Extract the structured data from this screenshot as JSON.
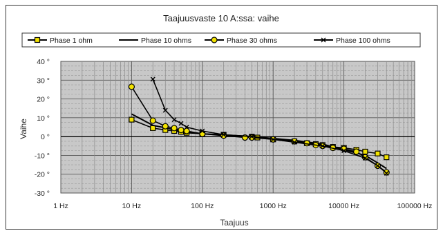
{
  "chart_data": {
    "type": "line",
    "title": "Taajuusvaste 10 A:ssa: vaihe",
    "xlabel": "Taajuus",
    "ylabel": "Vaihe",
    "x_scale": "log",
    "xlim": [
      1,
      100000
    ],
    "ylim": [
      -30,
      40
    ],
    "grid": true,
    "legend_position": "top",
    "x_ticks": [
      "1 Hz",
      "10 Hz",
      "100 Hz",
      "1000 Hz",
      "10000 Hz",
      "100000 Hz"
    ],
    "y_ticks": [
      "40 °",
      "30 °",
      "20 °",
      "10 °",
      "0 °",
      "-10 °",
      "-20 °",
      "-30 °"
    ],
    "colors": {
      "plot_bg": "#c8c8c8",
      "phase_1_fill": "#f2e200",
      "phase_30_fill": "#f2e200",
      "line": "#000000"
    },
    "series": [
      {
        "name": "Phase 1 ohm",
        "marker": "square",
        "x": [
          10,
          20,
          30,
          40,
          50,
          60,
          100,
          200,
          500,
          600,
          1000,
          2000,
          3000,
          4000,
          5000,
          7000,
          10000,
          15000,
          20000,
          30000,
          40000
        ],
        "y": [
          9,
          4.5,
          3.5,
          3,
          2.5,
          2,
          1.5,
          1,
          0,
          -0.5,
          -1.5,
          -2.5,
          -3.5,
          -4,
          -4.5,
          -5.5,
          -6,
          -7,
          -8,
          -9,
          -11
        ]
      },
      {
        "name": "Phase 10 ohms",
        "marker": "none",
        "x": [
          10,
          20,
          50,
          100,
          200,
          500,
          1000,
          2000,
          5000,
          10000,
          20000,
          30000,
          40000
        ],
        "y": [
          12,
          6,
          3,
          1.5,
          0.8,
          0,
          -1,
          -2,
          -4,
          -7,
          -10,
          -14,
          -17
        ]
      },
      {
        "name": "Phase 30 ohms",
        "marker": "circle",
        "x": [
          10,
          20,
          30,
          40,
          50,
          60,
          100,
          200,
          400,
          500,
          1000,
          2000,
          3000,
          4000,
          5000,
          7000,
          10000,
          15000,
          20000,
          30000,
          40000
        ],
        "y": [
          26.5,
          8.5,
          5.5,
          4.5,
          3.5,
          3,
          1.5,
          0.5,
          -0.5,
          -0.5,
          -1.5,
          -2.5,
          -3.5,
          -4.5,
          -5,
          -6,
          -6.5,
          -8,
          -11,
          -15.5,
          -19
        ]
      },
      {
        "name": "Phase 100 ohms",
        "marker": "x",
        "x": [
          20,
          30,
          40,
          50,
          60,
          100,
          200,
          500,
          1000,
          2000,
          5000,
          10000,
          20000,
          30000,
          40000
        ],
        "y": [
          30.5,
          14,
          9,
          7,
          5,
          3,
          1,
          0,
          -1.5,
          -3,
          -5,
          -7.5,
          -11.5,
          -15.5,
          -19.5
        ]
      }
    ]
  }
}
